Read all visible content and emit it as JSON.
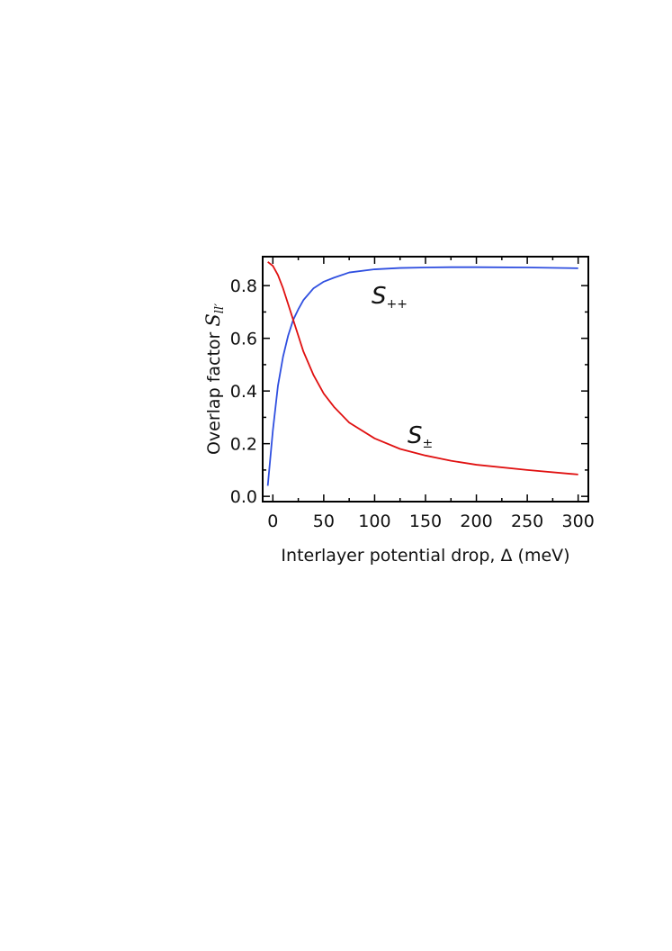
{
  "chart_data": {
    "type": "line",
    "xlabel": "Interlayer potential drop, Δ (meV)",
    "ylabel": {
      "text": "Overlap factor",
      "symbol": "S",
      "subscript": "ll′"
    },
    "x": [
      -5,
      0,
      5,
      10,
      15,
      20,
      25,
      30,
      40,
      50,
      60,
      75,
      100,
      125,
      150,
      175,
      200,
      250,
      300
    ],
    "series": [
      {
        "label": {
          "symbol": "S",
          "subscript": "++"
        },
        "color": "#2f4fe0",
        "values": [
          0.04,
          0.25,
          0.42,
          0.53,
          0.61,
          0.67,
          0.71,
          0.745,
          0.79,
          0.815,
          0.83,
          0.85,
          0.862,
          0.867,
          0.869,
          0.87,
          0.87,
          0.869,
          0.866
        ]
      },
      {
        "label": {
          "symbol": "S",
          "subscript": "±"
        },
        "color": "#e01010",
        "values": [
          0.89,
          0.875,
          0.84,
          0.79,
          0.73,
          0.67,
          0.61,
          0.55,
          0.46,
          0.39,
          0.34,
          0.28,
          0.22,
          0.18,
          0.155,
          0.135,
          0.12,
          0.1,
          0.083
        ]
      }
    ],
    "xlim": [
      -10,
      310
    ],
    "ylim": [
      -0.02,
      0.91
    ],
    "xticks": [
      0,
      50,
      100,
      150,
      200,
      250,
      300
    ],
    "xminorticks": [
      25,
      75,
      125,
      175,
      225,
      275
    ],
    "yticks": [
      {
        "value": 0,
        "label": "0.0"
      },
      0.2,
      0.4,
      0.6,
      0.8
    ],
    "yminorticks": [
      0.1,
      0.3,
      0.5,
      0.7
    ],
    "grid": false
  }
}
